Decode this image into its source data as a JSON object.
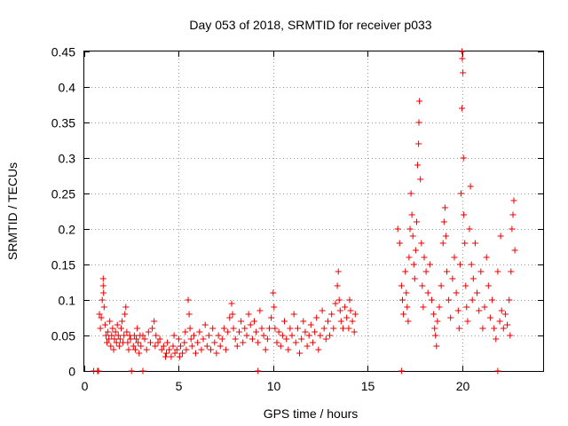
{
  "chart_data": {
    "type": "scatter",
    "title": "Day 053 of 2018, SRMTID for receiver p033",
    "xlabel": "GPS time / hours",
    "ylabel": "SRMTID / TECUs",
    "xlim": [
      0,
      24.3
    ],
    "ylim": [
      0,
      0.45
    ],
    "x_ticks": [
      0,
      5,
      10,
      15,
      20
    ],
    "x_tick_labels": [
      "0",
      "5",
      "10",
      "15",
      "20"
    ],
    "y_ticks": [
      0,
      0.05,
      0.1,
      0.15,
      0.2,
      0.25,
      0.3,
      0.35,
      0.4,
      0.45
    ],
    "y_tick_labels": [
      "0",
      "0.05",
      "0.1",
      "0.15",
      "0.2",
      "0.25",
      "0.3",
      "0.35",
      "0.4",
      "0.45"
    ],
    "grid": true,
    "marker": "plus",
    "series_color": "#ee0000",
    "series": [
      {
        "name": "SRMTID",
        "points": [
          [
            0.5,
            0.0
          ],
          [
            0.7,
            0.0
          ],
          [
            0.75,
            0.0
          ],
          [
            2.5,
            0.0
          ],
          [
            3.1,
            0.0
          ],
          [
            9.2,
            0.0
          ],
          [
            16.8,
            0.0
          ],
          [
            21.9,
            0.0
          ],
          [
            0.8,
            0.08
          ],
          [
            0.85,
            0.06
          ],
          [
            0.9,
            0.075
          ],
          [
            0.95,
            0.1
          ],
          [
            1.0,
            0.13
          ],
          [
            1.0,
            0.12
          ],
          [
            1.02,
            0.11
          ],
          [
            1.05,
            0.09
          ],
          [
            1.1,
            0.065
          ],
          [
            1.15,
            0.05
          ],
          [
            1.2,
            0.04
          ],
          [
            1.25,
            0.055
          ],
          [
            1.3,
            0.045
          ],
          [
            1.35,
            0.07
          ],
          [
            1.4,
            0.035
          ],
          [
            1.45,
            0.05
          ],
          [
            1.5,
            0.06
          ],
          [
            1.55,
            0.03
          ],
          [
            1.6,
            0.045
          ],
          [
            1.65,
            0.055
          ],
          [
            1.7,
            0.04
          ],
          [
            1.75,
            0.065
          ],
          [
            1.8,
            0.05
          ],
          [
            1.85,
            0.035
          ],
          [
            1.9,
            0.045
          ],
          [
            1.95,
            0.06
          ],
          [
            2.0,
            0.07
          ],
          [
            2.05,
            0.04
          ],
          [
            2.1,
            0.05
          ],
          [
            2.15,
            0.08
          ],
          [
            2.2,
            0.09
          ],
          [
            2.25,
            0.055
          ],
          [
            2.3,
            0.04
          ],
          [
            2.35,
            0.03
          ],
          [
            2.4,
            0.05
          ],
          [
            2.45,
            0.045
          ],
          [
            2.6,
            0.035
          ],
          [
            2.65,
            0.05
          ],
          [
            2.7,
            0.03
          ],
          [
            2.75,
            0.045
          ],
          [
            2.8,
            0.06
          ],
          [
            2.85,
            0.04
          ],
          [
            2.9,
            0.025
          ],
          [
            2.95,
            0.05
          ],
          [
            3.0,
            0.035
          ],
          [
            3.1,
            0.05
          ],
          [
            3.2,
            0.045
          ],
          [
            3.3,
            0.03
          ],
          [
            3.4,
            0.055
          ],
          [
            3.5,
            0.04
          ],
          [
            3.6,
            0.06
          ],
          [
            3.7,
            0.07
          ],
          [
            3.75,
            0.035
          ],
          [
            3.8,
            0.05
          ],
          [
            3.9,
            0.04
          ],
          [
            4.0,
            0.045
          ],
          [
            4.1,
            0.03
          ],
          [
            4.2,
            0.035
          ],
          [
            4.3,
            0.02
          ],
          [
            4.35,
            0.025
          ],
          [
            4.4,
            0.04
          ],
          [
            4.5,
            0.03
          ],
          [
            4.6,
            0.02
          ],
          [
            4.7,
            0.035
          ],
          [
            4.75,
            0.05
          ],
          [
            4.8,
            0.025
          ],
          [
            4.9,
            0.03
          ],
          [
            5.0,
            0.045
          ],
          [
            5.05,
            0.02
          ],
          [
            5.1,
            0.035
          ],
          [
            5.2,
            0.025
          ],
          [
            5.3,
            0.04
          ],
          [
            5.35,
            0.055
          ],
          [
            5.4,
            0.03
          ],
          [
            5.5,
            0.1
          ],
          [
            5.55,
            0.08
          ],
          [
            5.6,
            0.06
          ],
          [
            5.65,
            0.045
          ],
          [
            5.7,
            0.035
          ],
          [
            5.8,
            0.05
          ],
          [
            5.9,
            0.025
          ],
          [
            6.0,
            0.04
          ],
          [
            6.1,
            0.055
          ],
          [
            6.2,
            0.03
          ],
          [
            6.3,
            0.045
          ],
          [
            6.4,
            0.065
          ],
          [
            6.5,
            0.035
          ],
          [
            6.6,
            0.05
          ],
          [
            6.7,
            0.03
          ],
          [
            6.8,
            0.06
          ],
          [
            6.9,
            0.04
          ],
          [
            7.0,
            0.025
          ],
          [
            7.1,
            0.05
          ],
          [
            7.2,
            0.035
          ],
          [
            7.3,
            0.045
          ],
          [
            7.4,
            0.06
          ],
          [
            7.5,
            0.03
          ],
          [
            7.6,
            0.055
          ],
          [
            7.7,
            0.075
          ],
          [
            7.8,
            0.095
          ],
          [
            7.85,
            0.08
          ],
          [
            7.9,
            0.06
          ],
          [
            8.0,
            0.045
          ],
          [
            8.1,
            0.035
          ],
          [
            8.2,
            0.055
          ],
          [
            8.3,
            0.07
          ],
          [
            8.4,
            0.04
          ],
          [
            8.5,
            0.06
          ],
          [
            8.6,
            0.05
          ],
          [
            8.7,
            0.08
          ],
          [
            8.8,
            0.065
          ],
          [
            8.9,
            0.045
          ],
          [
            9.0,
            0.07
          ],
          [
            9.1,
            0.055
          ],
          [
            9.2,
            0.04
          ],
          [
            9.3,
            0.085
          ],
          [
            9.4,
            0.06
          ],
          [
            9.5,
            0.05
          ],
          [
            9.6,
            0.03
          ],
          [
            9.7,
            0.045
          ],
          [
            9.8,
            0.06
          ],
          [
            9.9,
            0.075
          ],
          [
            10.0,
            0.11
          ],
          [
            10.05,
            0.09
          ],
          [
            10.1,
            0.06
          ],
          [
            10.2,
            0.04
          ],
          [
            10.3,
            0.055
          ],
          [
            10.4,
            0.035
          ],
          [
            10.5,
            0.05
          ],
          [
            10.6,
            0.07
          ],
          [
            10.7,
            0.045
          ],
          [
            10.8,
            0.03
          ],
          [
            10.9,
            0.06
          ],
          [
            11.0,
            0.05
          ],
          [
            11.1,
            0.08
          ],
          [
            11.2,
            0.04
          ],
          [
            11.3,
            0.06
          ],
          [
            11.4,
            0.025
          ],
          [
            11.5,
            0.045
          ],
          [
            11.6,
            0.07
          ],
          [
            11.7,
            0.055
          ],
          [
            11.8,
            0.035
          ],
          [
            11.9,
            0.05
          ],
          [
            12.0,
            0.065
          ],
          [
            12.1,
            0.04
          ],
          [
            12.2,
            0.055
          ],
          [
            12.3,
            0.075
          ],
          [
            12.4,
            0.03
          ],
          [
            12.5,
            0.05
          ],
          [
            12.6,
            0.085
          ],
          [
            12.7,
            0.06
          ],
          [
            12.8,
            0.045
          ],
          [
            12.9,
            0.07
          ],
          [
            13.0,
            0.05
          ],
          [
            13.1,
            0.08
          ],
          [
            13.2,
            0.06
          ],
          [
            13.3,
            0.095
          ],
          [
            13.4,
            0.12
          ],
          [
            13.45,
            0.14
          ],
          [
            13.5,
            0.1
          ],
          [
            13.55,
            0.085
          ],
          [
            13.6,
            0.07
          ],
          [
            13.7,
            0.06
          ],
          [
            13.8,
            0.09
          ],
          [
            13.9,
            0.075
          ],
          [
            14.0,
            0.06
          ],
          [
            14.05,
            0.1
          ],
          [
            14.1,
            0.085
          ],
          [
            14.2,
            0.07
          ],
          [
            14.3,
            0.055
          ],
          [
            14.35,
            0.08
          ],
          [
            16.6,
            0.2
          ],
          [
            16.7,
            0.18
          ],
          [
            16.8,
            0.12
          ],
          [
            16.85,
            0.1
          ],
          [
            16.9,
            0.08
          ],
          [
            17.0,
            0.14
          ],
          [
            17.05,
            0.11
          ],
          [
            17.1,
            0.09
          ],
          [
            17.15,
            0.07
          ],
          [
            17.2,
            0.16
          ],
          [
            17.25,
            0.2
          ],
          [
            17.3,
            0.25
          ],
          [
            17.35,
            0.22
          ],
          [
            17.4,
            0.19
          ],
          [
            17.45,
            0.15
          ],
          [
            17.5,
            0.13
          ],
          [
            17.55,
            0.17
          ],
          [
            17.6,
            0.21
          ],
          [
            17.65,
            0.29
          ],
          [
            17.7,
            0.32
          ],
          [
            17.72,
            0.35
          ],
          [
            17.75,
            0.38
          ],
          [
            17.8,
            0.27
          ],
          [
            17.85,
            0.18
          ],
          [
            17.9,
            0.12
          ],
          [
            17.95,
            0.09
          ],
          [
            18.0,
            0.16
          ],
          [
            18.1,
            0.14
          ],
          [
            18.2,
            0.11
          ],
          [
            18.3,
            0.15
          ],
          [
            18.4,
            0.1
          ],
          [
            18.5,
            0.08
          ],
          [
            18.55,
            0.06
          ],
          [
            18.6,
            0.05
          ],
          [
            18.65,
            0.035
          ],
          [
            18.7,
            0.07
          ],
          [
            18.8,
            0.09
          ],
          [
            18.9,
            0.12
          ],
          [
            19.0,
            0.18
          ],
          [
            19.05,
            0.21
          ],
          [
            19.1,
            0.23
          ],
          [
            19.15,
            0.19
          ],
          [
            19.2,
            0.14
          ],
          [
            19.3,
            0.1
          ],
          [
            19.4,
            0.075
          ],
          [
            19.5,
            0.13
          ],
          [
            19.6,
            0.16
          ],
          [
            19.7,
            0.11
          ],
          [
            19.8,
            0.085
          ],
          [
            19.85,
            0.06
          ],
          [
            19.9,
            0.15
          ],
          [
            19.95,
            0.25
          ],
          [
            20.0,
            0.37
          ],
          [
            20.0,
            0.45
          ],
          [
            20.02,
            0.44
          ],
          [
            20.05,
            0.42
          ],
          [
            20.08,
            0.3
          ],
          [
            20.1,
            0.22
          ],
          [
            20.15,
            0.18
          ],
          [
            20.2,
            0.12
          ],
          [
            20.25,
            0.09
          ],
          [
            20.3,
            0.07
          ],
          [
            20.4,
            0.2
          ],
          [
            20.45,
            0.26
          ],
          [
            20.5,
            0.15
          ],
          [
            20.55,
            0.1
          ],
          [
            20.6,
            0.13
          ],
          [
            20.7,
            0.18
          ],
          [
            20.8,
            0.11
          ],
          [
            20.9,
            0.085
          ],
          [
            21.0,
            0.14
          ],
          [
            21.1,
            0.06
          ],
          [
            21.2,
            0.09
          ],
          [
            21.3,
            0.16
          ],
          [
            21.4,
            0.12
          ],
          [
            21.5,
            0.075
          ],
          [
            21.6,
            0.1
          ],
          [
            21.7,
            0.06
          ],
          [
            21.8,
            0.045
          ],
          [
            21.9,
            0.14
          ],
          [
            22.0,
            0.07
          ],
          [
            22.05,
            0.19
          ],
          [
            22.1,
            0.085
          ],
          [
            22.2,
            0.06
          ],
          [
            22.3,
            0.08
          ],
          [
            22.4,
            0.065
          ],
          [
            22.5,
            0.1
          ],
          [
            22.55,
            0.05
          ],
          [
            22.6,
            0.14
          ],
          [
            22.65,
            0.2
          ],
          [
            22.7,
            0.22
          ],
          [
            22.75,
            0.24
          ],
          [
            22.8,
            0.17
          ]
        ]
      }
    ]
  }
}
